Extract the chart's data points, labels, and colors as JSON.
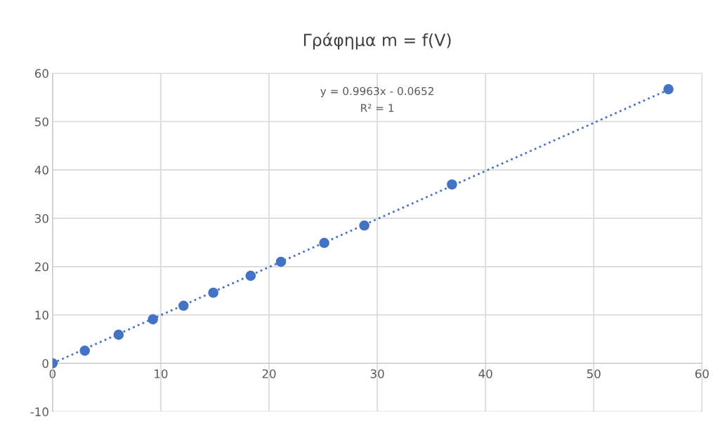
{
  "chart_data": {
    "type": "scatter",
    "title": "Γράφημα m = f(V)",
    "series": [
      {
        "color": "#4472c4",
        "marker": "circle",
        "x": [
          0,
          2.98,
          6.1,
          9.27,
          12.1,
          14.85,
          18.3,
          21.1,
          25.1,
          28.8,
          36.9,
          56.9
        ],
        "values": [
          0,
          2.6,
          5.9,
          9.1,
          11.9,
          14.6,
          18.1,
          21.0,
          24.9,
          28.5,
          37.0,
          56.7
        ]
      },
      {
        "type": "line",
        "color": "#4472c4",
        "line_style": "dotted",
        "marker": "none",
        "x": [
          0,
          56.9
        ],
        "values": [
          0,
          56.6
        ]
      }
    ],
    "annotations": [
      "y = 0.9963x - 0.0652",
      "R² = 1"
    ],
    "xlim": [
      0,
      60
    ],
    "xticks": [
      0,
      10,
      20,
      30,
      40,
      50,
      60
    ],
    "ylim": [
      -10,
      60
    ],
    "yticks": [
      -10,
      0,
      10,
      20,
      30,
      40,
      50,
      60
    ],
    "grid": true,
    "legend": false
  }
}
